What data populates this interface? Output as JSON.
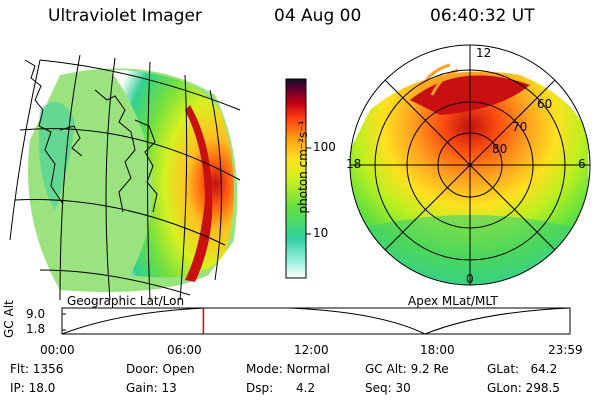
{
  "header": {
    "instrument": "Ultraviolet Imager",
    "date": "04 Aug 00",
    "time": "06:40:32 UT"
  },
  "left_panel": {
    "caption": "Geographic Lat/Lon"
  },
  "right_panel": {
    "caption": "Apex MLat/MLT",
    "mlt_labels": {
      "top": "12",
      "left": "18",
      "right": "6",
      "bottom": "0"
    },
    "lat_labels": [
      "60",
      "70",
      "80"
    ]
  },
  "colorbar": {
    "unit_label": "photon cm⁻²s⁻¹",
    "ticks": [
      "100",
      "10"
    ]
  },
  "timeline": {
    "ylabel": "GC Alt",
    "yticks": [
      "9.0",
      "1.8"
    ],
    "xticks": [
      "00:00",
      "06:00",
      "12:00",
      "18:00",
      "23:59"
    ],
    "marker_hours": 6.676
  },
  "stats": {
    "flt": "Flt: 1356",
    "ip": "IP: 18.0",
    "door": "Door: Open",
    "gain": "Gain: 13",
    "mode": "Mode: Normal",
    "dsp": "Dsp:      4.2",
    "gcalt": "GC Alt: 9.2 Re",
    "seq": "Seq: 30",
    "glat": "GLat:   64.2",
    "glon": "GLon: 298.5"
  },
  "colors": {
    "marker": "#e00000",
    "line": "#000000"
  }
}
